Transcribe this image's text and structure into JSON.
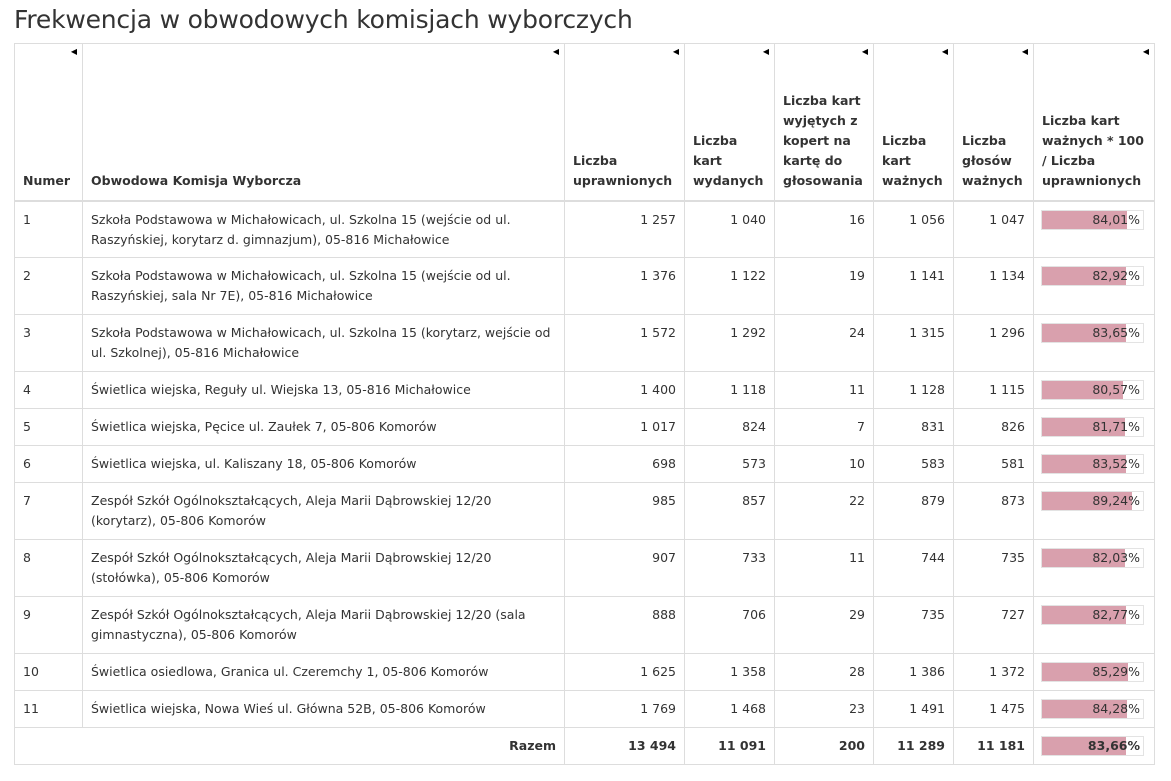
{
  "page": {
    "title": "Frekwencja w obwodowych komisjach wyborczych"
  },
  "colors": {
    "bar_fill": "#d9a0ad",
    "border": "#dddddd",
    "text": "#333333"
  },
  "table": {
    "sort_icon": "sort-arrow-icon",
    "headers": [
      "Numer",
      "Obwodowa Komisja Wyborcza",
      "Liczba uprawnionych",
      "Liczba kart wydanych",
      "Liczba kart wyjętych z kopert na kartę do głosowania",
      "Liczba kart ważnych",
      "Liczba głosów ważnych",
      "Liczba kart ważnych * 100 / Liczba uprawnionych"
    ],
    "rows": [
      {
        "num": "1",
        "name": "Szkoła Podstawowa w Michałowicach, ul. Szkolna 15 (wejście od ul. Raszyńskiej, korytarz d. gimnazjum), 05-816 Michałowice",
        "eligible": "1 257",
        "issued": "1 040",
        "taken": "16",
        "valid_cards": "1 056",
        "valid_votes": "1 047",
        "turnout": "84,01%",
        "turnout_value": 84.01
      },
      {
        "num": "2",
        "name": "Szkoła Podstawowa w Michałowicach, ul. Szkolna 15 (wejście od ul. Raszyńskiej, sala Nr 7E), 05-816 Michałowice",
        "eligible": "1 376",
        "issued": "1 122",
        "taken": "19",
        "valid_cards": "1 141",
        "valid_votes": "1 134",
        "turnout": "82,92%",
        "turnout_value": 82.92
      },
      {
        "num": "3",
        "name": "Szkoła Podstawowa w Michałowicach, ul. Szkolna 15 (korytarz, wejście od ul. Szkolnej), 05-816 Michałowice",
        "eligible": "1 572",
        "issued": "1 292",
        "taken": "24",
        "valid_cards": "1 315",
        "valid_votes": "1 296",
        "turnout": "83,65%",
        "turnout_value": 83.65
      },
      {
        "num": "4",
        "name": "Świetlica wiejska, Reguły ul. Wiejska 13, 05-816 Michałowice",
        "eligible": "1 400",
        "issued": "1 118",
        "taken": "11",
        "valid_cards": "1 128",
        "valid_votes": "1 115",
        "turnout": "80,57%",
        "turnout_value": 80.57
      },
      {
        "num": "5",
        "name": "Świetlica wiejska, Pęcice ul. Zaułek 7, 05-806 Komorów",
        "eligible": "1 017",
        "issued": "824",
        "taken": "7",
        "valid_cards": "831",
        "valid_votes": "826",
        "turnout": "81,71%",
        "turnout_value": 81.71
      },
      {
        "num": "6",
        "name": "Świetlica wiejska, ul. Kaliszany 18, 05-806 Komorów",
        "eligible": "698",
        "issued": "573",
        "taken": "10",
        "valid_cards": "583",
        "valid_votes": "581",
        "turnout": "83,52%",
        "turnout_value": 83.52
      },
      {
        "num": "7",
        "name": "Zespół Szkół Ogólnokształcących, Aleja Marii Dąbrowskiej 12/20 (korytarz), 05-806 Komorów",
        "eligible": "985",
        "issued": "857",
        "taken": "22",
        "valid_cards": "879",
        "valid_votes": "873",
        "turnout": "89,24%",
        "turnout_value": 89.24
      },
      {
        "num": "8",
        "name": "Zespół Szkół Ogólnokształcących, Aleja Marii Dąbrowskiej 12/20 (stołówka), 05-806 Komorów",
        "eligible": "907",
        "issued": "733",
        "taken": "11",
        "valid_cards": "744",
        "valid_votes": "735",
        "turnout": "82,03%",
        "turnout_value": 82.03
      },
      {
        "num": "9",
        "name": "Zespół Szkół Ogólnokształcących, Aleja Marii Dąbrowskiej 12/20 (sala gimnastyczna), 05-806 Komorów",
        "eligible": "888",
        "issued": "706",
        "taken": "29",
        "valid_cards": "735",
        "valid_votes": "727",
        "turnout": "82,77%",
        "turnout_value": 82.77
      },
      {
        "num": "10",
        "name": "Świetlica osiedlowa, Granica ul. Czeremchy 1, 05-806 Komorów",
        "eligible": "1 625",
        "issued": "1 358",
        "taken": "28",
        "valid_cards": "1 386",
        "valid_votes": "1 372",
        "turnout": "85,29%",
        "turnout_value": 85.29
      },
      {
        "num": "11",
        "name": "Świetlica wiejska, Nowa Wieś ul. Główna 52B, 05-806 Komorów",
        "eligible": "1 769",
        "issued": "1 468",
        "taken": "23",
        "valid_cards": "1 491",
        "valid_votes": "1 475",
        "turnout": "84,28%",
        "turnout_value": 84.28
      }
    ],
    "total": {
      "label": "Razem",
      "eligible": "13 494",
      "issued": "11 091",
      "taken": "200",
      "valid_cards": "11 289",
      "valid_votes": "11 181",
      "turnout": "83,66%",
      "turnout_value": 83.66
    }
  }
}
